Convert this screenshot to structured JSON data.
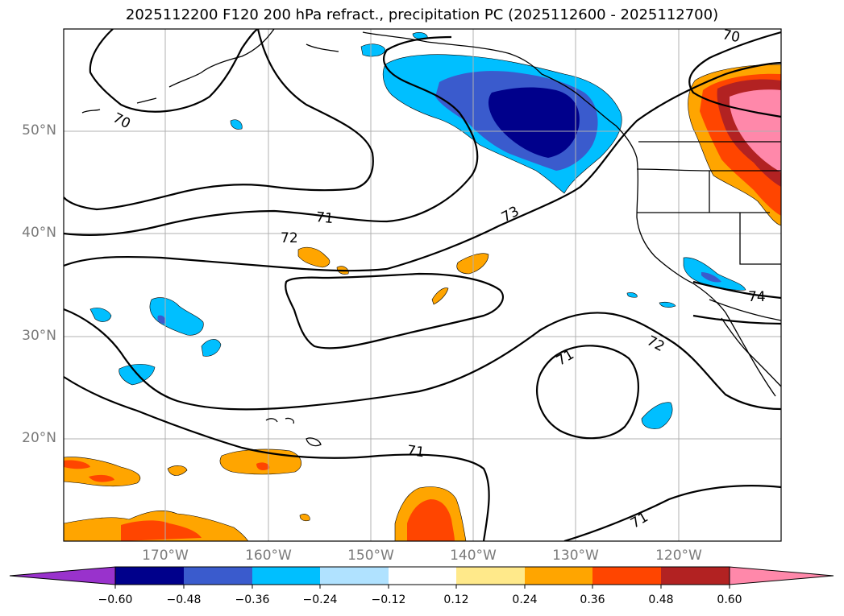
{
  "title": "2025112200 F120 200 hPa refract., precipitation PC (2025112600 - 2025112700)",
  "map": {
    "lat_labels": [
      "50°N",
      "40°N",
      "30°N",
      "20°N"
    ],
    "lon_labels": [
      "170°W",
      "160°W",
      "150°W",
      "140°W",
      "130°W",
      "120°W"
    ],
    "contour_labels": [
      "70",
      "70",
      "71",
      "72",
      "73",
      "71",
      "72",
      "71",
      "71",
      "74"
    ]
  },
  "colorbar": {
    "ticks": [
      "−0.60",
      "−0.48",
      "−0.36",
      "−0.24",
      "−0.12",
      "0.12",
      "0.24",
      "0.36",
      "0.48",
      "0.60"
    ],
    "colors": [
      "#9932cc",
      "#00008b",
      "#3a5bcd",
      "#00bfff",
      "#b0e2ff",
      "#ffffff",
      "#ffe98a",
      "#ffa500",
      "#ff4500",
      "#b22222",
      "#ff88aa",
      "#ff88aa"
    ]
  }
}
